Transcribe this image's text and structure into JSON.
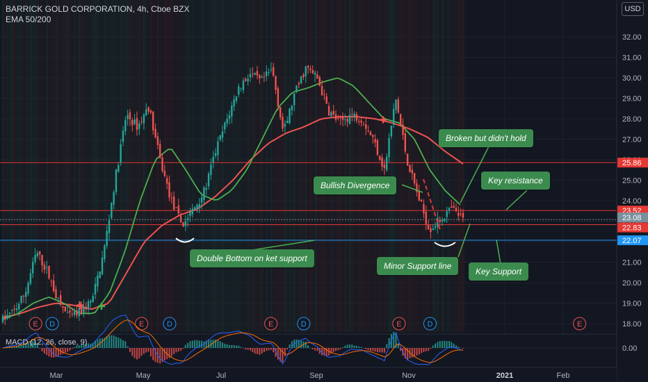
{
  "header": {
    "title": "BARRICK GOLD CORPORATION, 4h, Cboe BZX",
    "indicator": "EMA 50/200",
    "currency_button": "USD"
  },
  "chart_data": {
    "type": "candlestick",
    "symbol": "BARRICK GOLD CORPORATION",
    "interval": "4h",
    "exchange": "Cboe BZX",
    "ylim": [
      17.6,
      33.0
    ],
    "y_ticks": [
      18.0,
      19.0,
      20.0,
      21.0,
      22.0,
      23.0,
      24.0,
      25.0,
      26.0,
      27.0,
      28.0,
      29.0,
      30.0,
      31.0,
      32.0
    ],
    "x_ticks": [
      "Mar",
      "May",
      "Jul",
      "Sep",
      "Nov",
      "2021",
      "Feb"
    ],
    "price_path_anchors": [
      {
        "x": 18.2
      },
      {
        "x": 18.6
      },
      {
        "x": 19.5
      },
      {
        "x": 21.5
      },
      {
        "x": 20.5
      },
      {
        "x": 19.0
      },
      {
        "x": 18.3
      },
      {
        "x": 18.6
      },
      {
        "x": 19.2
      },
      {
        "x": 21.5
      },
      {
        "x": 25.0
      },
      {
        "x": 28.2
      },
      {
        "x": 27.6
      },
      {
        "x": 28.6
      },
      {
        "x": 26.0
      },
      {
        "x": 24.0
      },
      {
        "x": 22.8
      },
      {
        "x": 23.6
      },
      {
        "x": 24.5
      },
      {
        "x": 26.5
      },
      {
        "x": 28.0
      },
      {
        "x": 29.5
      },
      {
        "x": 30.2
      },
      {
        "x": 29.8
      },
      {
        "x": 30.4
      },
      {
        "x": 27.3
      },
      {
        "x": 29.2
      },
      {
        "x": 30.5
      },
      {
        "x": 30.0
      },
      {
        "x": 28.4
      },
      {
        "x": 27.8
      },
      {
        "x": 28.2
      },
      {
        "x": 28.0
      },
      {
        "x": 27.0
      },
      {
        "x": 25.5
      },
      {
        "x": 29.0
      },
      {
        "x": 26.0
      },
      {
        "x": 24.2
      },
      {
        "x": 22.6
      },
      {
        "x": 23.1
      },
      {
        "x": 23.6
      },
      {
        "x": 23.08
      }
    ],
    "ema50_anchors": [
      18.2,
      18.5,
      19.0,
      19.3,
      19.0,
      18.5,
      18.5,
      19.5,
      21.5,
      24.0,
      26.0,
      26.6,
      25.5,
      24.3,
      24.0,
      24.5,
      25.5,
      27.0,
      28.5,
      29.3,
      29.5,
      29.8,
      30.0,
      29.6,
      28.8,
      28.0,
      27.8,
      27.0,
      25.5,
      24.5,
      23.8
    ],
    "ema200_anchors": [
      18.3,
      18.5,
      18.8,
      19.0,
      18.9,
      18.7,
      19.0,
      20.5,
      22.0,
      22.8,
      23.3,
      23.6,
      24.2,
      25.0,
      26.0,
      26.8,
      27.3,
      27.6,
      28.0,
      28.1,
      28.1,
      28.0,
      27.8,
      27.5,
      27.1,
      26.4,
      25.8
    ],
    "series": [
      {
        "name": "EMA 50",
        "color": "#4caf50"
      },
      {
        "name": "EMA 200",
        "color": "#ef5350"
      }
    ],
    "horizontal_levels": [
      {
        "value": 25.86,
        "label": "25.86",
        "color": "#e53935"
      },
      {
        "value": 23.52,
        "label": "23.52",
        "color": "#e53935"
      },
      {
        "value": 23.08,
        "label": "23.08",
        "color": "#78909c"
      },
      {
        "value": 22.83,
        "label": "22.83",
        "color": "#e53935"
      },
      {
        "value": 22.07,
        "label": "22.07",
        "color": "#2196f3"
      }
    ],
    "events": [
      {
        "type": "E",
        "date_frac": 0.055
      },
      {
        "type": "D",
        "date_frac": 0.083
      },
      {
        "type": "E",
        "date_frac": 0.233
      },
      {
        "type": "D",
        "date_frac": 0.28
      },
      {
        "type": "E",
        "date_frac": 0.45
      },
      {
        "type": "D",
        "date_frac": 0.505
      },
      {
        "type": "E",
        "date_frac": 0.665
      },
      {
        "type": "D",
        "date_frac": 0.717
      },
      {
        "type": "E",
        "date_frac": 0.968
      }
    ],
    "annotations": [
      "Double Bottom on ket support",
      "Bullish Divergence",
      "Broken but didn't hold",
      "Key resistance",
      "Minor Support line",
      "Key Support"
    ],
    "macd": {
      "label": "MACD (12, 26, close, 9)",
      "y_tick": "0.00"
    }
  },
  "colors": {
    "background": "#131722",
    "up": "#26a69a",
    "down": "#ef5350",
    "annotation": "#3b8b4e"
  }
}
